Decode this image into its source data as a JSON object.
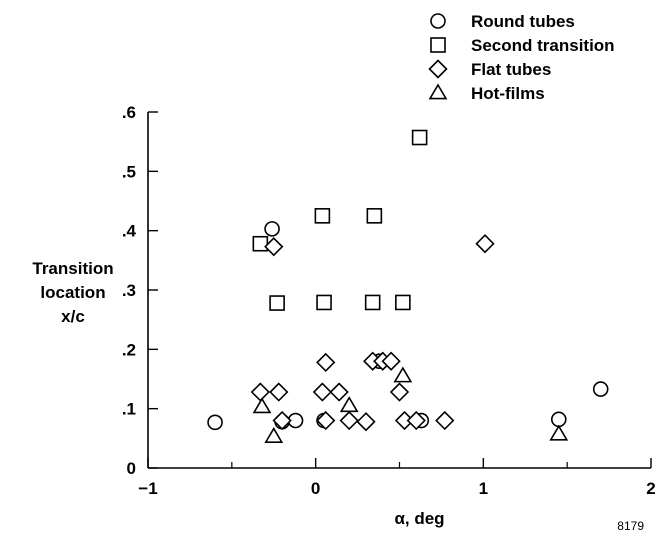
{
  "chart_data": {
    "type": "scatter",
    "title": "",
    "xlabel": "α, deg",
    "ylabel": [
      "Transition",
      "location",
      "x/c"
    ],
    "xlim": [
      -1,
      2
    ],
    "ylim": [
      0,
      0.6
    ],
    "x_ticks": [
      -1,
      0,
      1,
      2
    ],
    "x_tick_labels": [
      "−1",
      "0",
      "1",
      "2"
    ],
    "y_ticks": [
      0,
      0.1,
      0.2,
      0.3,
      0.4,
      0.5,
      0.6
    ],
    "y_tick_labels": [
      "0",
      ".1",
      ".2",
      ".3",
      ".4",
      ".5",
      ".6"
    ],
    "grid": false,
    "legend_position": "top-right",
    "figure_id": "8179",
    "series": [
      {
        "name": "Round tubes",
        "marker": "circle",
        "points": [
          {
            "x": -0.6,
            "y": 0.077
          },
          {
            "x": -0.26,
            "y": 0.403
          },
          {
            "x": -0.2,
            "y": 0.078
          },
          {
            "x": -0.12,
            "y": 0.08
          },
          {
            "x": 0.05,
            "y": 0.08
          },
          {
            "x": 0.38,
            "y": 0.18
          },
          {
            "x": 0.63,
            "y": 0.08
          },
          {
            "x": 1.45,
            "y": 0.082
          },
          {
            "x": 1.7,
            "y": 0.133
          }
        ]
      },
      {
        "name": "Second transition",
        "marker": "square",
        "points": [
          {
            "x": -0.33,
            "y": 0.378
          },
          {
            "x": -0.23,
            "y": 0.278
          },
          {
            "x": 0.04,
            "y": 0.425
          },
          {
            "x": 0.05,
            "y": 0.279
          },
          {
            "x": 0.34,
            "y": 0.279
          },
          {
            "x": 0.35,
            "y": 0.425
          },
          {
            "x": 0.52,
            "y": 0.279
          },
          {
            "x": 0.62,
            "y": 0.557
          }
        ]
      },
      {
        "name": "Flat tubes",
        "marker": "diamond",
        "points": [
          {
            "x": -0.33,
            "y": 0.128
          },
          {
            "x": -0.25,
            "y": 0.373
          },
          {
            "x": -0.22,
            "y": 0.128
          },
          {
            "x": -0.2,
            "y": 0.08
          },
          {
            "x": 0.04,
            "y": 0.128
          },
          {
            "x": 0.06,
            "y": 0.178
          },
          {
            "x": 0.06,
            "y": 0.08
          },
          {
            "x": 0.14,
            "y": 0.128
          },
          {
            "x": 0.2,
            "y": 0.08
          },
          {
            "x": 0.3,
            "y": 0.078
          },
          {
            "x": 0.34,
            "y": 0.18
          },
          {
            "x": 0.4,
            "y": 0.18
          },
          {
            "x": 0.45,
            "y": 0.18
          },
          {
            "x": 0.5,
            "y": 0.128
          },
          {
            "x": 0.53,
            "y": 0.08
          },
          {
            "x": 0.6,
            "y": 0.08
          },
          {
            "x": 0.77,
            "y": 0.08
          },
          {
            "x": 1.01,
            "y": 0.378
          }
        ]
      },
      {
        "name": "Hot-films",
        "marker": "triangle",
        "points": [
          {
            "x": -0.32,
            "y": 0.103
          },
          {
            "x": -0.25,
            "y": 0.053
          },
          {
            "x": 0.2,
            "y": 0.105
          },
          {
            "x": 0.52,
            "y": 0.155
          },
          {
            "x": 1.45,
            "y": 0.057
          }
        ]
      }
    ]
  }
}
